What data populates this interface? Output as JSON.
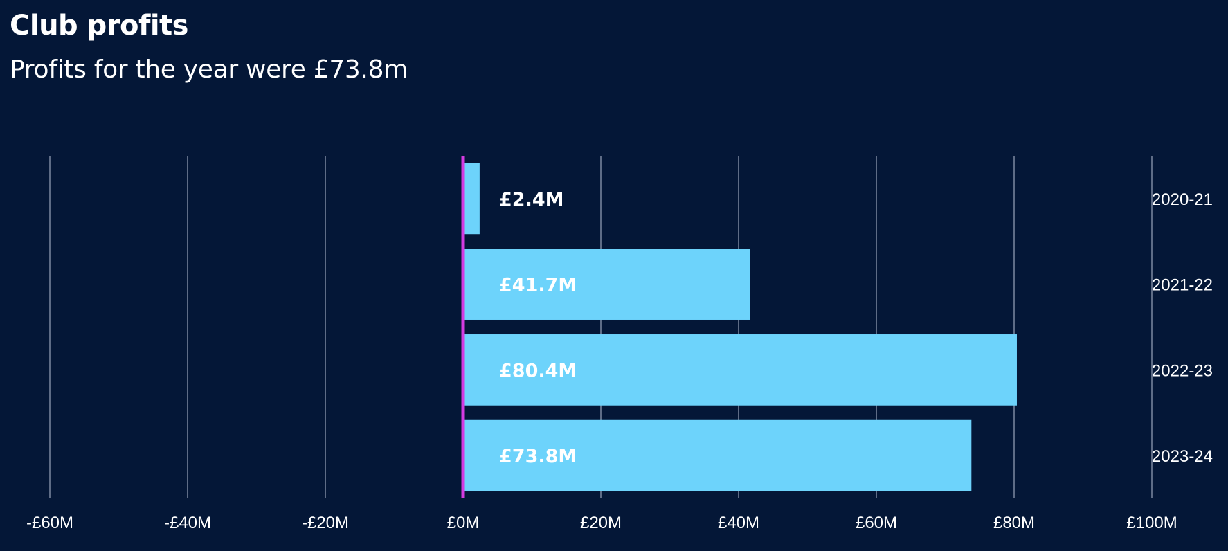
{
  "chart_data": {
    "type": "bar",
    "orientation": "horizontal",
    "title": "Club profits",
    "subtitle": "Profits for the year were £73.8m",
    "categories": [
      "2020-21",
      "2021-22",
      "2022-23",
      "2023-24"
    ],
    "values": [
      2.4,
      41.7,
      80.4,
      73.8
    ],
    "value_labels": [
      "£2.4M",
      "£41.7M",
      "£80.4M",
      "£73.8M"
    ],
    "xlim": [
      -60,
      100
    ],
    "xticks": [
      -60,
      -40,
      -20,
      0,
      20,
      40,
      60,
      80,
      100
    ],
    "xtick_labels": [
      "-£60M",
      "-£40M",
      "-£20M",
      "£0M",
      "£20M",
      "£40M",
      "£60M",
      "£80M",
      "£100M"
    ],
    "category_label_position": "right",
    "grid": true,
    "colors": {
      "background": "#041737",
      "bar": "#6dd3fb",
      "zero_line": "#d43be0",
      "grid": "#b9c2d4",
      "text": "#ffffff"
    }
  }
}
